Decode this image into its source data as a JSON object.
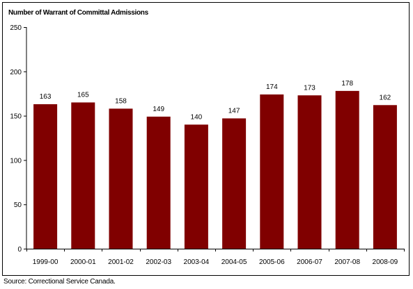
{
  "chart_data": {
    "type": "bar",
    "title": "Number of Warrant of Committal Admissions",
    "categories": [
      "1999-00",
      "2000-01",
      "2001-02",
      "2002-03",
      "2003-04",
      "2004-05",
      "2005-06",
      "2006-07",
      "2007-08",
      "2008-09"
    ],
    "values": [
      163,
      165,
      158,
      149,
      140,
      147,
      174,
      173,
      178,
      162
    ],
    "data_labels": [
      "163",
      "165",
      "158",
      "149",
      "140",
      "147",
      "174",
      "173",
      "178",
      "162"
    ],
    "ylim": [
      0,
      250
    ],
    "yticks": [
      0,
      50,
      100,
      150,
      200,
      250
    ],
    "ytick_labels": [
      "0",
      "50",
      "100",
      "150",
      "200",
      "250"
    ],
    "xlabel": "",
    "ylabel": "",
    "grid": false,
    "legend": "none",
    "bar_color": "#800000"
  },
  "footer": {
    "source": "Source:  Correctional Service Canada."
  }
}
